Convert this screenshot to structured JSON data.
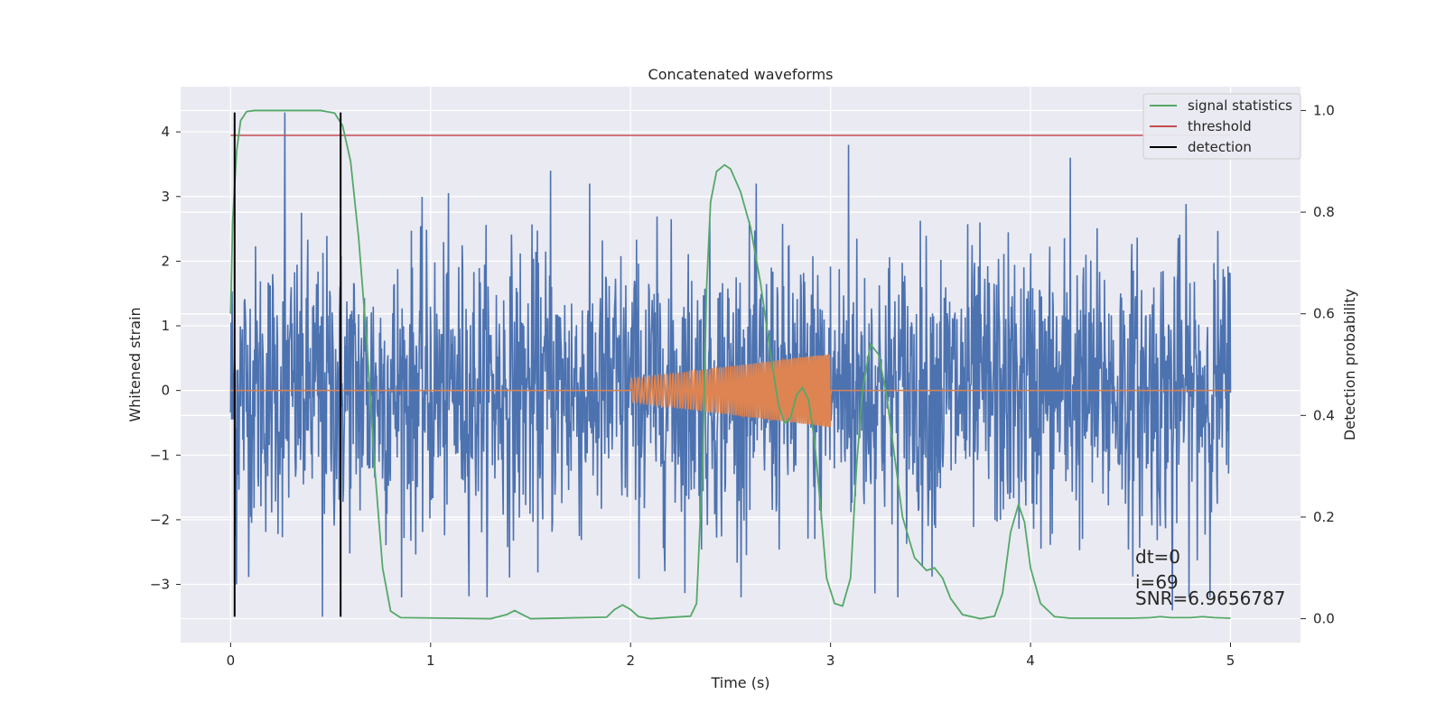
{
  "chart_data": {
    "type": "line",
    "title": "Concatenated waveforms",
    "xlabel": "Time (s)",
    "ylabel": "Whitened strain",
    "y2label": "Detection probability",
    "xlim": [
      -0.25,
      5.35
    ],
    "ylim": [
      -3.9,
      4.7
    ],
    "y2lim": [
      -0.047,
      1.047
    ],
    "xticks": [
      "0",
      "1",
      "2",
      "3",
      "4",
      "5"
    ],
    "xtick_values": [
      0,
      1,
      2,
      3,
      4,
      5
    ],
    "yticks": [
      "−3",
      "−2",
      "−1",
      "0",
      "1",
      "2",
      "3",
      "4"
    ],
    "ytick_values": [
      -3,
      -2,
      -1,
      0,
      1,
      2,
      3,
      4
    ],
    "y2ticks": [
      "0.0",
      "0.2",
      "0.4",
      "0.6",
      "0.8",
      "1.0"
    ],
    "y2tick_values": [
      0,
      0.2,
      0.4,
      0.6,
      0.8,
      1.0
    ],
    "grid": true,
    "legend_position": "top-right",
    "series": [
      {
        "name": "",
        "axis": "left",
        "color": "#4c72b0",
        "description_kind": "noise",
        "x_range": [
          0,
          5
        ],
        "samples": 2048,
        "typical_amplitude": 1.1,
        "peak_values": [
          {
            "x": 0.27,
            "y": 4.3
          },
          {
            "x": 0.46,
            "y": -3.5
          },
          {
            "x": 1.6,
            "y": 3.4
          },
          {
            "x": 3.09,
            "y": 3.8
          },
          {
            "x": 4.2,
            "y": 3.6
          },
          {
            "x": 4.71,
            "y": -3.4
          },
          {
            "x": 0.03,
            "y": -3.0
          }
        ]
      },
      {
        "name": "",
        "axis": "left",
        "color": "#dd8452",
        "description_kind": "chirp",
        "x_range": [
          0,
          5
        ],
        "chirp_start": 2.0,
        "chirp_end": 3.0,
        "chirp_amp_start": 0.18,
        "chirp_amp_end": 0.57
      },
      {
        "name": "signal statistics",
        "axis": "right",
        "color": "#55a868",
        "points": [
          [
            0.0,
            0.6
          ],
          [
            0.01,
            0.78
          ],
          [
            0.03,
            0.92
          ],
          [
            0.05,
            0.98
          ],
          [
            0.08,
            0.998
          ],
          [
            0.12,
            1.0
          ],
          [
            0.45,
            1.0
          ],
          [
            0.52,
            0.995
          ],
          [
            0.56,
            0.97
          ],
          [
            0.6,
            0.9
          ],
          [
            0.64,
            0.75
          ],
          [
            0.68,
            0.55
          ],
          [
            0.72,
            0.3
          ],
          [
            0.76,
            0.1
          ],
          [
            0.8,
            0.015
          ],
          [
            0.85,
            0.002
          ],
          [
            1.3,
            0.0
          ],
          [
            1.38,
            0.008
          ],
          [
            1.42,
            0.016
          ],
          [
            1.46,
            0.008
          ],
          [
            1.5,
            0.0
          ],
          [
            1.88,
            0.003
          ],
          [
            1.92,
            0.018
          ],
          [
            1.96,
            0.027
          ],
          [
            2.0,
            0.018
          ],
          [
            2.04,
            0.004
          ],
          [
            2.1,
            0.0
          ],
          [
            2.3,
            0.005
          ],
          [
            2.33,
            0.03
          ],
          [
            2.36,
            0.3
          ],
          [
            2.38,
            0.65
          ],
          [
            2.4,
            0.82
          ],
          [
            2.43,
            0.88
          ],
          [
            2.47,
            0.893
          ],
          [
            2.5,
            0.885
          ],
          [
            2.55,
            0.84
          ],
          [
            2.6,
            0.77
          ],
          [
            2.65,
            0.66
          ],
          [
            2.7,
            0.52
          ],
          [
            2.74,
            0.42
          ],
          [
            2.77,
            0.385
          ],
          [
            2.8,
            0.395
          ],
          [
            2.83,
            0.44
          ],
          [
            2.86,
            0.455
          ],
          [
            2.89,
            0.43
          ],
          [
            2.92,
            0.35
          ],
          [
            2.95,
            0.22
          ],
          [
            2.98,
            0.08
          ],
          [
            3.02,
            0.03
          ],
          [
            3.06,
            0.025
          ],
          [
            3.1,
            0.08
          ],
          [
            3.13,
            0.3
          ],
          [
            3.16,
            0.45
          ],
          [
            3.2,
            0.54
          ],
          [
            3.24,
            0.52
          ],
          [
            3.28,
            0.44
          ],
          [
            3.32,
            0.32
          ],
          [
            3.36,
            0.2
          ],
          [
            3.42,
            0.12
          ],
          [
            3.48,
            0.095
          ],
          [
            3.52,
            0.1
          ],
          [
            3.56,
            0.08
          ],
          [
            3.6,
            0.04
          ],
          [
            3.66,
            0.008
          ],
          [
            3.75,
            0.0
          ],
          [
            3.82,
            0.005
          ],
          [
            3.86,
            0.05
          ],
          [
            3.9,
            0.17
          ],
          [
            3.94,
            0.225
          ],
          [
            3.97,
            0.19
          ],
          [
            4.0,
            0.1
          ],
          [
            4.05,
            0.03
          ],
          [
            4.12,
            0.004
          ],
          [
            4.2,
            0.001
          ],
          [
            4.5,
            0.001
          ],
          [
            4.6,
            0.002
          ],
          [
            4.65,
            0.004
          ],
          [
            4.7,
            0.002
          ],
          [
            4.8,
            0.002
          ],
          [
            4.86,
            0.004
          ],
          [
            4.92,
            0.002
          ],
          [
            5.0,
            0.001
          ]
        ]
      },
      {
        "name": "threshold",
        "axis": "right",
        "color": "#c44e52",
        "value": 0.951,
        "x_range": [
          0,
          5
        ]
      }
    ],
    "detections": {
      "name": "detection",
      "color": "#000000",
      "x": [
        0.02,
        0.55
      ],
      "y_range": [
        -3.5,
        4.3
      ]
    },
    "annotations": [
      "dt=0",
      "i=69",
      "SNR=6.9656787"
    ]
  }
}
